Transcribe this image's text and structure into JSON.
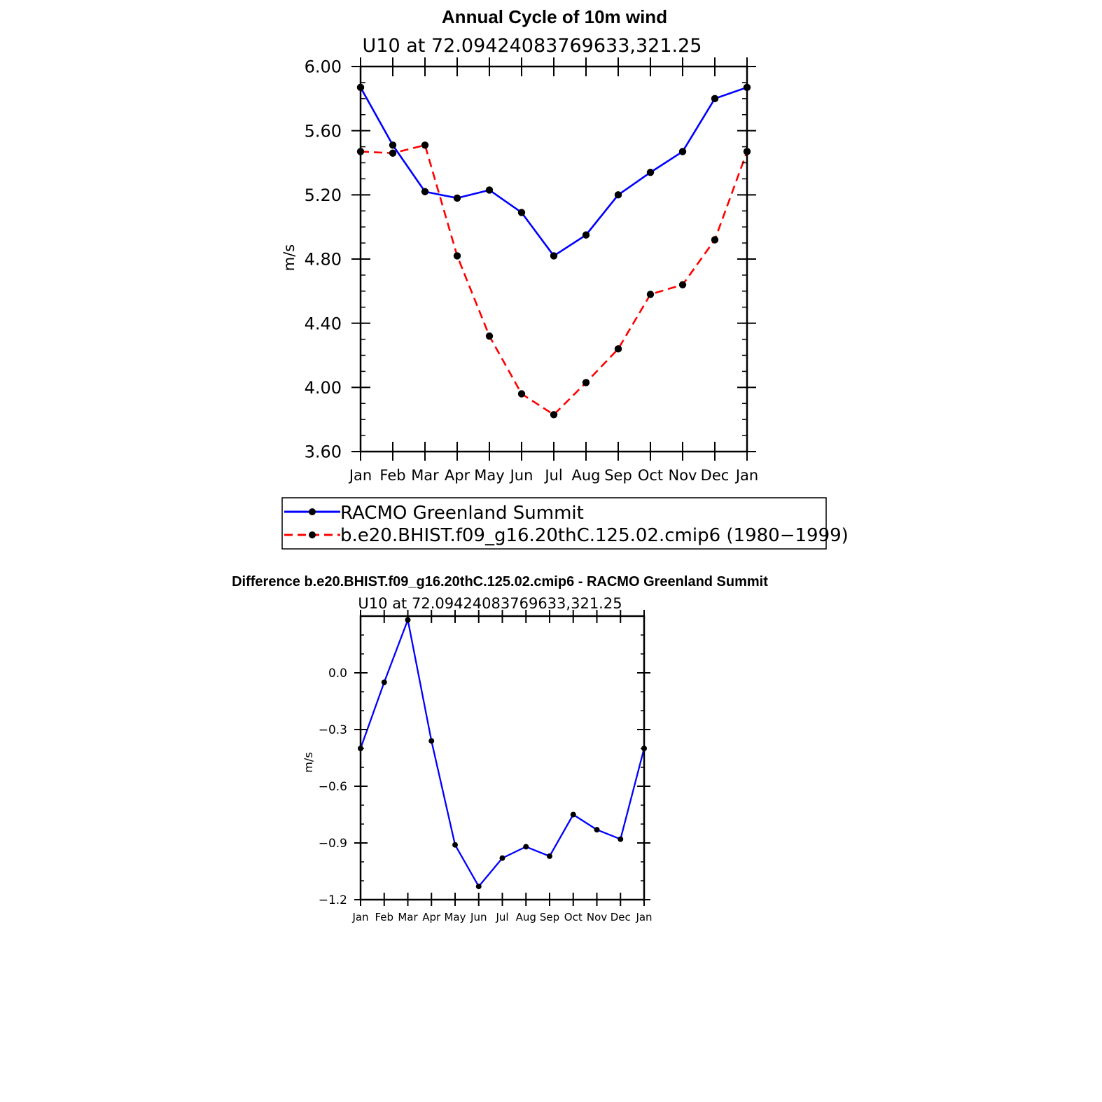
{
  "chart_data": [
    {
      "type": "line",
      "title": "Annual Cycle of 10m wind",
      "subtitle": "U10 at 72.09424083769633,321.25",
      "ylabel": "m/s",
      "xlabel": "",
      "categories": [
        "Jan",
        "Feb",
        "Mar",
        "Apr",
        "May",
        "Jun",
        "Jul",
        "Aug",
        "Sep",
        "Oct",
        "Nov",
        "Dec",
        "Jan"
      ],
      "ylim": [
        3.6,
        6.0
      ],
      "yticks": [
        "6.00",
        "5.60",
        "5.20",
        "4.80",
        "4.40",
        "4.00",
        "3.60"
      ],
      "legend_position": "bottom",
      "series": [
        {
          "name": "RACMO Greenland Summit",
          "color": "#0000ff",
          "dash": "solid",
          "values": [
            5.87,
            5.51,
            5.22,
            5.18,
            5.23,
            5.09,
            4.82,
            4.95,
            5.2,
            5.34,
            5.47,
            5.8,
            5.87
          ]
        },
        {
          "name": "b.e20.BHIST.f09_g16.20thC.125.02.cmip6 (1980−1999)",
          "color": "#ff0000",
          "dash": "dashed",
          "values": [
            5.47,
            5.46,
            5.51,
            4.82,
            4.32,
            3.96,
            3.83,
            4.03,
            4.24,
            4.58,
            4.64,
            4.92,
            5.47
          ]
        }
      ]
    },
    {
      "type": "line",
      "title": "Difference b.e20.BHIST.f09_g16.20thC.125.02.cmip6 - RACMO Greenland Summit",
      "subtitle": "U10 at 72.09424083769633,321.25",
      "ylabel": "m/s",
      "xlabel": "",
      "categories": [
        "Jan",
        "Feb",
        "Mar",
        "Apr",
        "May",
        "Jun",
        "Jul",
        "Aug",
        "Sep",
        "Oct",
        "Nov",
        "Dec",
        "Jan"
      ],
      "ylim": [
        -1.2,
        0.3
      ],
      "yticks": [
        "0.0",
        "−0.3",
        "−0.6",
        "−0.9",
        "−1.2"
      ],
      "series": [
        {
          "color": "#0000ff",
          "dash": "solid",
          "values": [
            -0.4,
            -0.05,
            0.28,
            -0.36,
            -0.91,
            -1.13,
            -0.98,
            -0.92,
            -0.97,
            -0.75,
            -0.83,
            -0.88,
            -0.4
          ]
        }
      ]
    }
  ]
}
